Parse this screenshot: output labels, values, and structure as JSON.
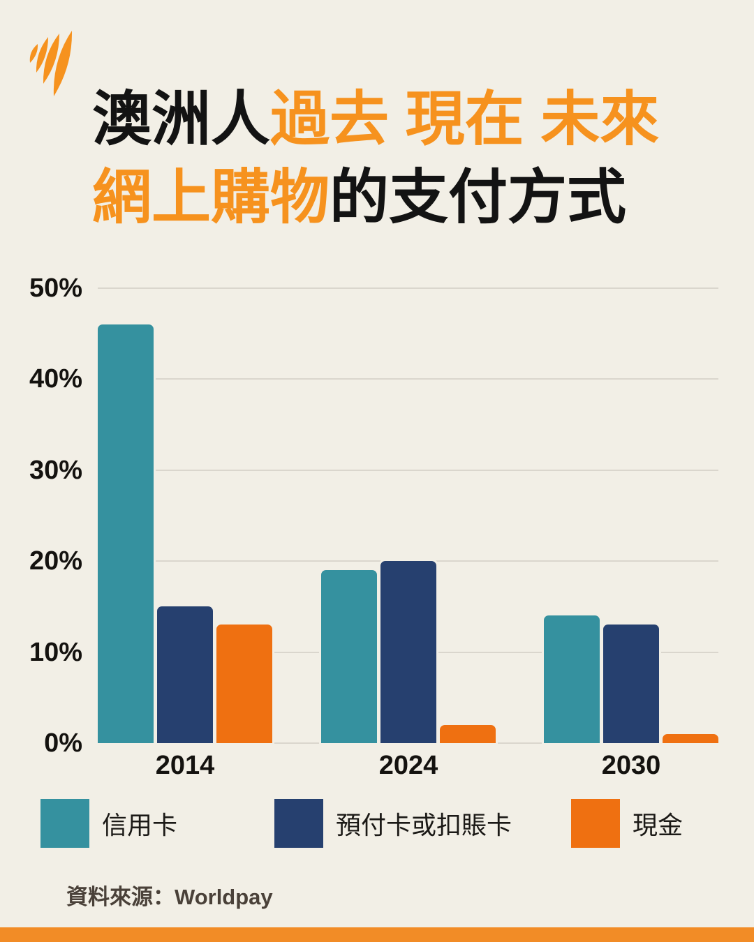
{
  "brand": {
    "logo_icon": "sbs-flash-logo",
    "logo_color": "#F6921E"
  },
  "title": {
    "black1": "澳洲人",
    "orange1": "過去 現在 未來",
    "orange2": "網上購物",
    "black2": "的支付方式"
  },
  "chart_data": {
    "type": "bar",
    "categories": [
      "2014",
      "2024",
      "2030"
    ],
    "series": [
      {
        "name": "信用卡",
        "color": "#35919F",
        "values": [
          46,
          19,
          14
        ]
      },
      {
        "name": "預付卡或扣賬卡",
        "color": "#26406F",
        "values": [
          15,
          20,
          13
        ]
      },
      {
        "name": "現金",
        "color": "#EF7011",
        "values": [
          13,
          2,
          1
        ]
      }
    ],
    "ylim": [
      0,
      50
    ],
    "ytick_step": 10,
    "ytick_labels": [
      "0%",
      "10%",
      "20%",
      "30%",
      "40%",
      "50%"
    ],
    "xlabel": "",
    "ylabel": "",
    "grid": true,
    "legend_position": "bottom"
  },
  "source": {
    "label": "資料來源：Worldpay"
  },
  "colors": {
    "background": "#F2EFE6",
    "title_orange": "#F6921E",
    "gridline": "#DAD6CD",
    "axis_text": "#14120F",
    "source_text": "#4A4139",
    "footer_strip": "#F28C26"
  }
}
